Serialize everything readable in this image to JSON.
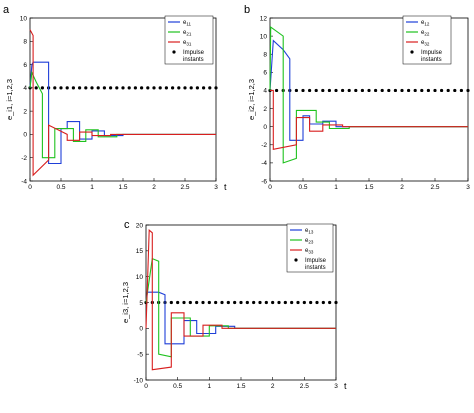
{
  "chart_data": [
    {
      "panel": "a",
      "type": "line",
      "ylabel": "e_i1, i=1,2,3",
      "xlabel": "t",
      "xlim": [
        0,
        3
      ],
      "ylim": [
        -4,
        10
      ],
      "x_ticks": [
        "0",
        "0.5",
        "1",
        "1.5",
        "2",
        "2.5",
        "3"
      ],
      "y_ticks": [
        "-4",
        "-2",
        "0",
        "2",
        "4",
        "6",
        "8",
        "10"
      ],
      "impulse_level": 4,
      "impulse_instants": [
        0.0,
        0.1,
        0.2,
        0.3,
        0.4,
        0.5,
        0.6,
        0.7,
        0.8,
        0.9,
        1.0,
        1.1,
        1.2,
        1.3,
        1.4,
        1.5,
        1.6,
        1.7,
        1.8,
        1.9,
        2.0,
        2.1,
        2.2,
        2.3,
        2.4,
        2.5,
        2.6,
        2.7,
        2.8,
        2.9,
        3.0
      ],
      "legend": [
        "e",
        "e",
        "e",
        "Impulse instants"
      ],
      "legend_subs": [
        "11",
        "21",
        "31",
        ""
      ],
      "series": [
        {
          "color": "#1f3fd8",
          "x": [
            0,
            0.03,
            0.05,
            0.3,
            0.3,
            0.5,
            0.5,
            0.6,
            0.6,
            0.8,
            0.8,
            1.0,
            1.0,
            1.2,
            1.2,
            1.5,
            1.5,
            3.0
          ],
          "y": [
            4,
            6.0,
            6.2,
            6.2,
            -2.5,
            -2.5,
            0.5,
            0.5,
            1.1,
            1.1,
            -0.4,
            -0.4,
            0.3,
            0.3,
            -0.1,
            -0.1,
            0,
            0
          ]
        },
        {
          "color": "#1ec21e",
          "x": [
            0,
            0.03,
            0.1,
            0.2,
            0.2,
            0.4,
            0.4,
            0.7,
            0.7,
            0.9,
            0.9,
            1.1,
            1.1,
            1.4,
            1.4,
            3.0
          ],
          "y": [
            4,
            5.3,
            4.5,
            3.5,
            -2.0,
            -2.0,
            0.5,
            0.5,
            -0.6,
            -0.6,
            0.4,
            0.4,
            -0.2,
            -0.2,
            0,
            0
          ]
        },
        {
          "color": "#d81e1e",
          "x": [
            0,
            0.05,
            0.05,
            0.3,
            0.3,
            0.6,
            0.6,
            0.8,
            0.8,
            1.0,
            1.0,
            1.3,
            1.3,
            3.0
          ],
          "y": [
            9.0,
            8.5,
            -3.5,
            -2.2,
            0.8,
            0.0,
            -0.5,
            -0.5,
            0.2,
            0.2,
            -0.1,
            -0.1,
            0,
            0
          ]
        }
      ]
    },
    {
      "panel": "b",
      "type": "line",
      "ylabel": "e_i2, i=1,2,3",
      "xlabel": "t",
      "xlim": [
        0,
        3
      ],
      "ylim": [
        -6,
        12
      ],
      "x_ticks": [
        "0",
        "0.5",
        "1",
        "1.5",
        "2",
        "2.5",
        "3"
      ],
      "y_ticks": [
        "-6",
        "-4",
        "-2",
        "0",
        "2",
        "4",
        "6",
        "8",
        "10",
        "12"
      ],
      "impulse_level": 4,
      "impulse_instants": [
        0.0,
        0.1,
        0.2,
        0.3,
        0.4,
        0.5,
        0.6,
        0.7,
        0.8,
        0.9,
        1.0,
        1.1,
        1.2,
        1.3,
        1.4,
        1.5,
        1.6,
        1.7,
        1.8,
        1.9,
        2.0,
        2.1,
        2.2,
        2.3,
        2.4,
        2.5,
        2.6,
        2.7,
        2.8,
        2.9,
        3.0
      ],
      "legend": [
        "e",
        "e",
        "e",
        "Impulse instants"
      ],
      "legend_subs": [
        "12",
        "22",
        "32",
        ""
      ],
      "series": [
        {
          "color": "#1f3fd8",
          "x": [
            0,
            0.05,
            0.2,
            0.3,
            0.3,
            0.5,
            0.5,
            0.6,
            0.6,
            0.8,
            0.8,
            1.0,
            1.0,
            3.0
          ],
          "y": [
            4,
            9.5,
            8.5,
            7.5,
            -1.5,
            -1.5,
            1.2,
            1.2,
            0.3,
            0.3,
            0.6,
            0.6,
            0,
            0
          ]
        },
        {
          "color": "#1ec21e",
          "x": [
            0,
            0.01,
            0.2,
            0.2,
            0.4,
            0.4,
            0.7,
            0.7,
            0.9,
            0.9,
            1.2,
            1.2,
            3.0
          ],
          "y": [
            4,
            11.0,
            10.0,
            -4.0,
            -3.5,
            1.8,
            1.8,
            0.5,
            0.5,
            -0.2,
            -0.2,
            0,
            0
          ]
        },
        {
          "color": "#d81e1e",
          "x": [
            0,
            0.05,
            0.05,
            0.4,
            0.4,
            0.6,
            0.6,
            0.8,
            0.8,
            1.1,
            1.1,
            3.0
          ],
          "y": [
            4,
            4,
            -2.5,
            -2.0,
            1.0,
            1.0,
            -0.5,
            -0.5,
            0.2,
            0.2,
            0,
            0
          ]
        }
      ]
    },
    {
      "panel": "c",
      "type": "line",
      "ylabel": "e_i3, i=1,2,3",
      "xlabel": "t",
      "xlim": [
        0,
        3
      ],
      "ylim": [
        -10,
        20
      ],
      "x_ticks": [
        "0",
        "0.5",
        "1",
        "1.5",
        "2",
        "2.5",
        "3"
      ],
      "y_ticks": [
        "-10",
        "-5",
        "0",
        "5",
        "10",
        "15",
        "20"
      ],
      "impulse_level": 5,
      "impulse_instants": [
        0.0,
        0.1,
        0.2,
        0.3,
        0.4,
        0.5,
        0.6,
        0.7,
        0.8,
        0.9,
        1.0,
        1.1,
        1.2,
        1.3,
        1.4,
        1.5,
        1.6,
        1.7,
        1.8,
        1.9,
        2.0,
        2.1,
        2.2,
        2.3,
        2.4,
        2.5,
        2.6,
        2.7,
        2.8,
        2.9,
        3.0
      ],
      "legend": [
        "e",
        "e",
        "e",
        "Impulse instants"
      ],
      "legend_subs": [
        "13",
        "23",
        "33",
        ""
      ],
      "series": [
        {
          "color": "#1f3fd8",
          "x": [
            0,
            0.02,
            0.2,
            0.3,
            0.3,
            0.6,
            0.6,
            0.8,
            0.8,
            1.1,
            1.1,
            1.4,
            1.4,
            3.0
          ],
          "y": [
            5,
            7.0,
            7.0,
            6.5,
            -3.0,
            -3.0,
            1.5,
            1.5,
            -1.0,
            -1.0,
            0.4,
            0.4,
            0,
            0
          ]
        },
        {
          "color": "#1ec21e",
          "x": [
            0,
            0.1,
            0.2,
            0.2,
            0.4,
            0.4,
            0.7,
            0.7,
            1.0,
            1.0,
            1.3,
            1.3,
            3.0
          ],
          "y": [
            5,
            13.5,
            13.0,
            -5.0,
            -5.5,
            2.0,
            2.0,
            -1.5,
            -1.5,
            0.5,
            0.5,
            0,
            0
          ]
        },
        {
          "color": "#d81e1e",
          "x": [
            0,
            0.05,
            0.1,
            0.1,
            0.4,
            0.4,
            0.6,
            0.6,
            0.9,
            0.9,
            1.2,
            1.2,
            3.0
          ],
          "y": [
            0,
            19.0,
            18.5,
            -8.0,
            -7.5,
            3.0,
            3.0,
            -1.5,
            -1.5,
            0.6,
            0.6,
            0,
            0
          ]
        }
      ]
    }
  ]
}
